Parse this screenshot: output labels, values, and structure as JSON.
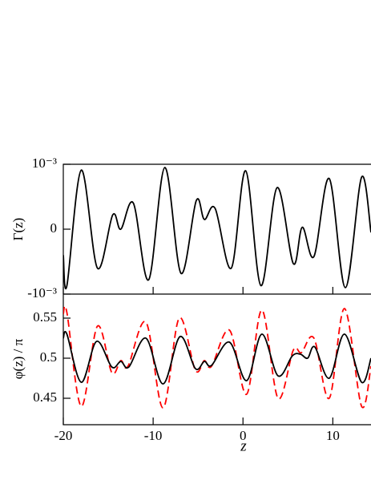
{
  "chart_data": [
    {
      "type": "line",
      "ylabel": "Γ(z)",
      "xlim": [
        -20,
        14.25
      ],
      "ylim": [
        -0.001,
        0.001
      ],
      "yticks": [
        {
          "value": 0.001,
          "label": "10⁻³"
        },
        0,
        {
          "value": -0.001,
          "label": "-10⁻³"
        }
      ],
      "series": [
        {
          "color": "#000000",
          "dash": false,
          "x": [
            -20,
            -19.6,
            -18,
            -16.2,
            -14.5,
            -13.6,
            -12.2,
            -10.5,
            -8.7,
            -6.9,
            -5.2,
            -4.3,
            -3.1,
            -1.3,
            0.3,
            2.0,
            3.8,
            5.6,
            6.6,
            7.9,
            9.6,
            11.4,
            13.2,
            14.25
          ],
          "values": [
            -0.0004,
            -0.00087,
            0.00091,
            -0.0006,
            0.00022,
            0.0,
            0.0004,
            -0.00078,
            0.00095,
            -0.00068,
            0.00044,
            0.00015,
            0.00032,
            -0.0006,
            0.0009,
            -0.00087,
            0.00064,
            -0.00053,
            3e-05,
            -0.00042,
            0.00078,
            -0.0009,
            0.0008,
            -5e-05
          ]
        }
      ]
    },
    {
      "type": "line",
      "ylabel": "φ(z) / π",
      "xlabel": "z",
      "xlim": [
        -20,
        14.25
      ],
      "ylim": [
        0.417,
        0.58
      ],
      "xticks": [
        -20,
        -10,
        0,
        10
      ],
      "yticks": [
        0.45,
        0.5,
        0.55
      ],
      "series": [
        {
          "color": "#000000",
          "dash": false,
          "x": [
            -20,
            -19.6,
            -18,
            -16.3,
            -14.6,
            -13.6,
            -12.7,
            -10.8,
            -8.9,
            -7.0,
            -5.3,
            -4.3,
            -3.5,
            -1.5,
            0.4,
            2.1,
            3.9,
            5.5,
            6.4,
            7.2,
            8.0,
            9.6,
            11.3,
            13.2,
            14.25
          ],
          "values": [
            0.525,
            0.53,
            0.47,
            0.521,
            0.489,
            0.496,
            0.489,
            0.525,
            0.468,
            0.527,
            0.487,
            0.496,
            0.491,
            0.52,
            0.472,
            0.53,
            0.478,
            0.503,
            0.505,
            0.5,
            0.514,
            0.475,
            0.53,
            0.47,
            0.5
          ]
        },
        {
          "color": "#ff0000",
          "dash": true,
          "x": [
            -20,
            -19.6,
            -18,
            -16.2,
            -14.6,
            -13.6,
            -12.8,
            -10.8,
            -8.9,
            -7.1,
            -5.3,
            -4.3,
            -3.5,
            -1.5,
            0.4,
            2.1,
            3.9,
            5.6,
            6.5,
            7.9,
            9.6,
            11.3,
            13.2,
            14.25
          ],
          "values": [
            0.555,
            0.557,
            0.44,
            0.54,
            0.482,
            0.497,
            0.49,
            0.545,
            0.438,
            0.55,
            0.485,
            0.497,
            0.49,
            0.535,
            0.455,
            0.56,
            0.45,
            0.51,
            0.507,
            0.525,
            0.45,
            0.562,
            0.44,
            0.49
          ]
        }
      ]
    }
  ]
}
